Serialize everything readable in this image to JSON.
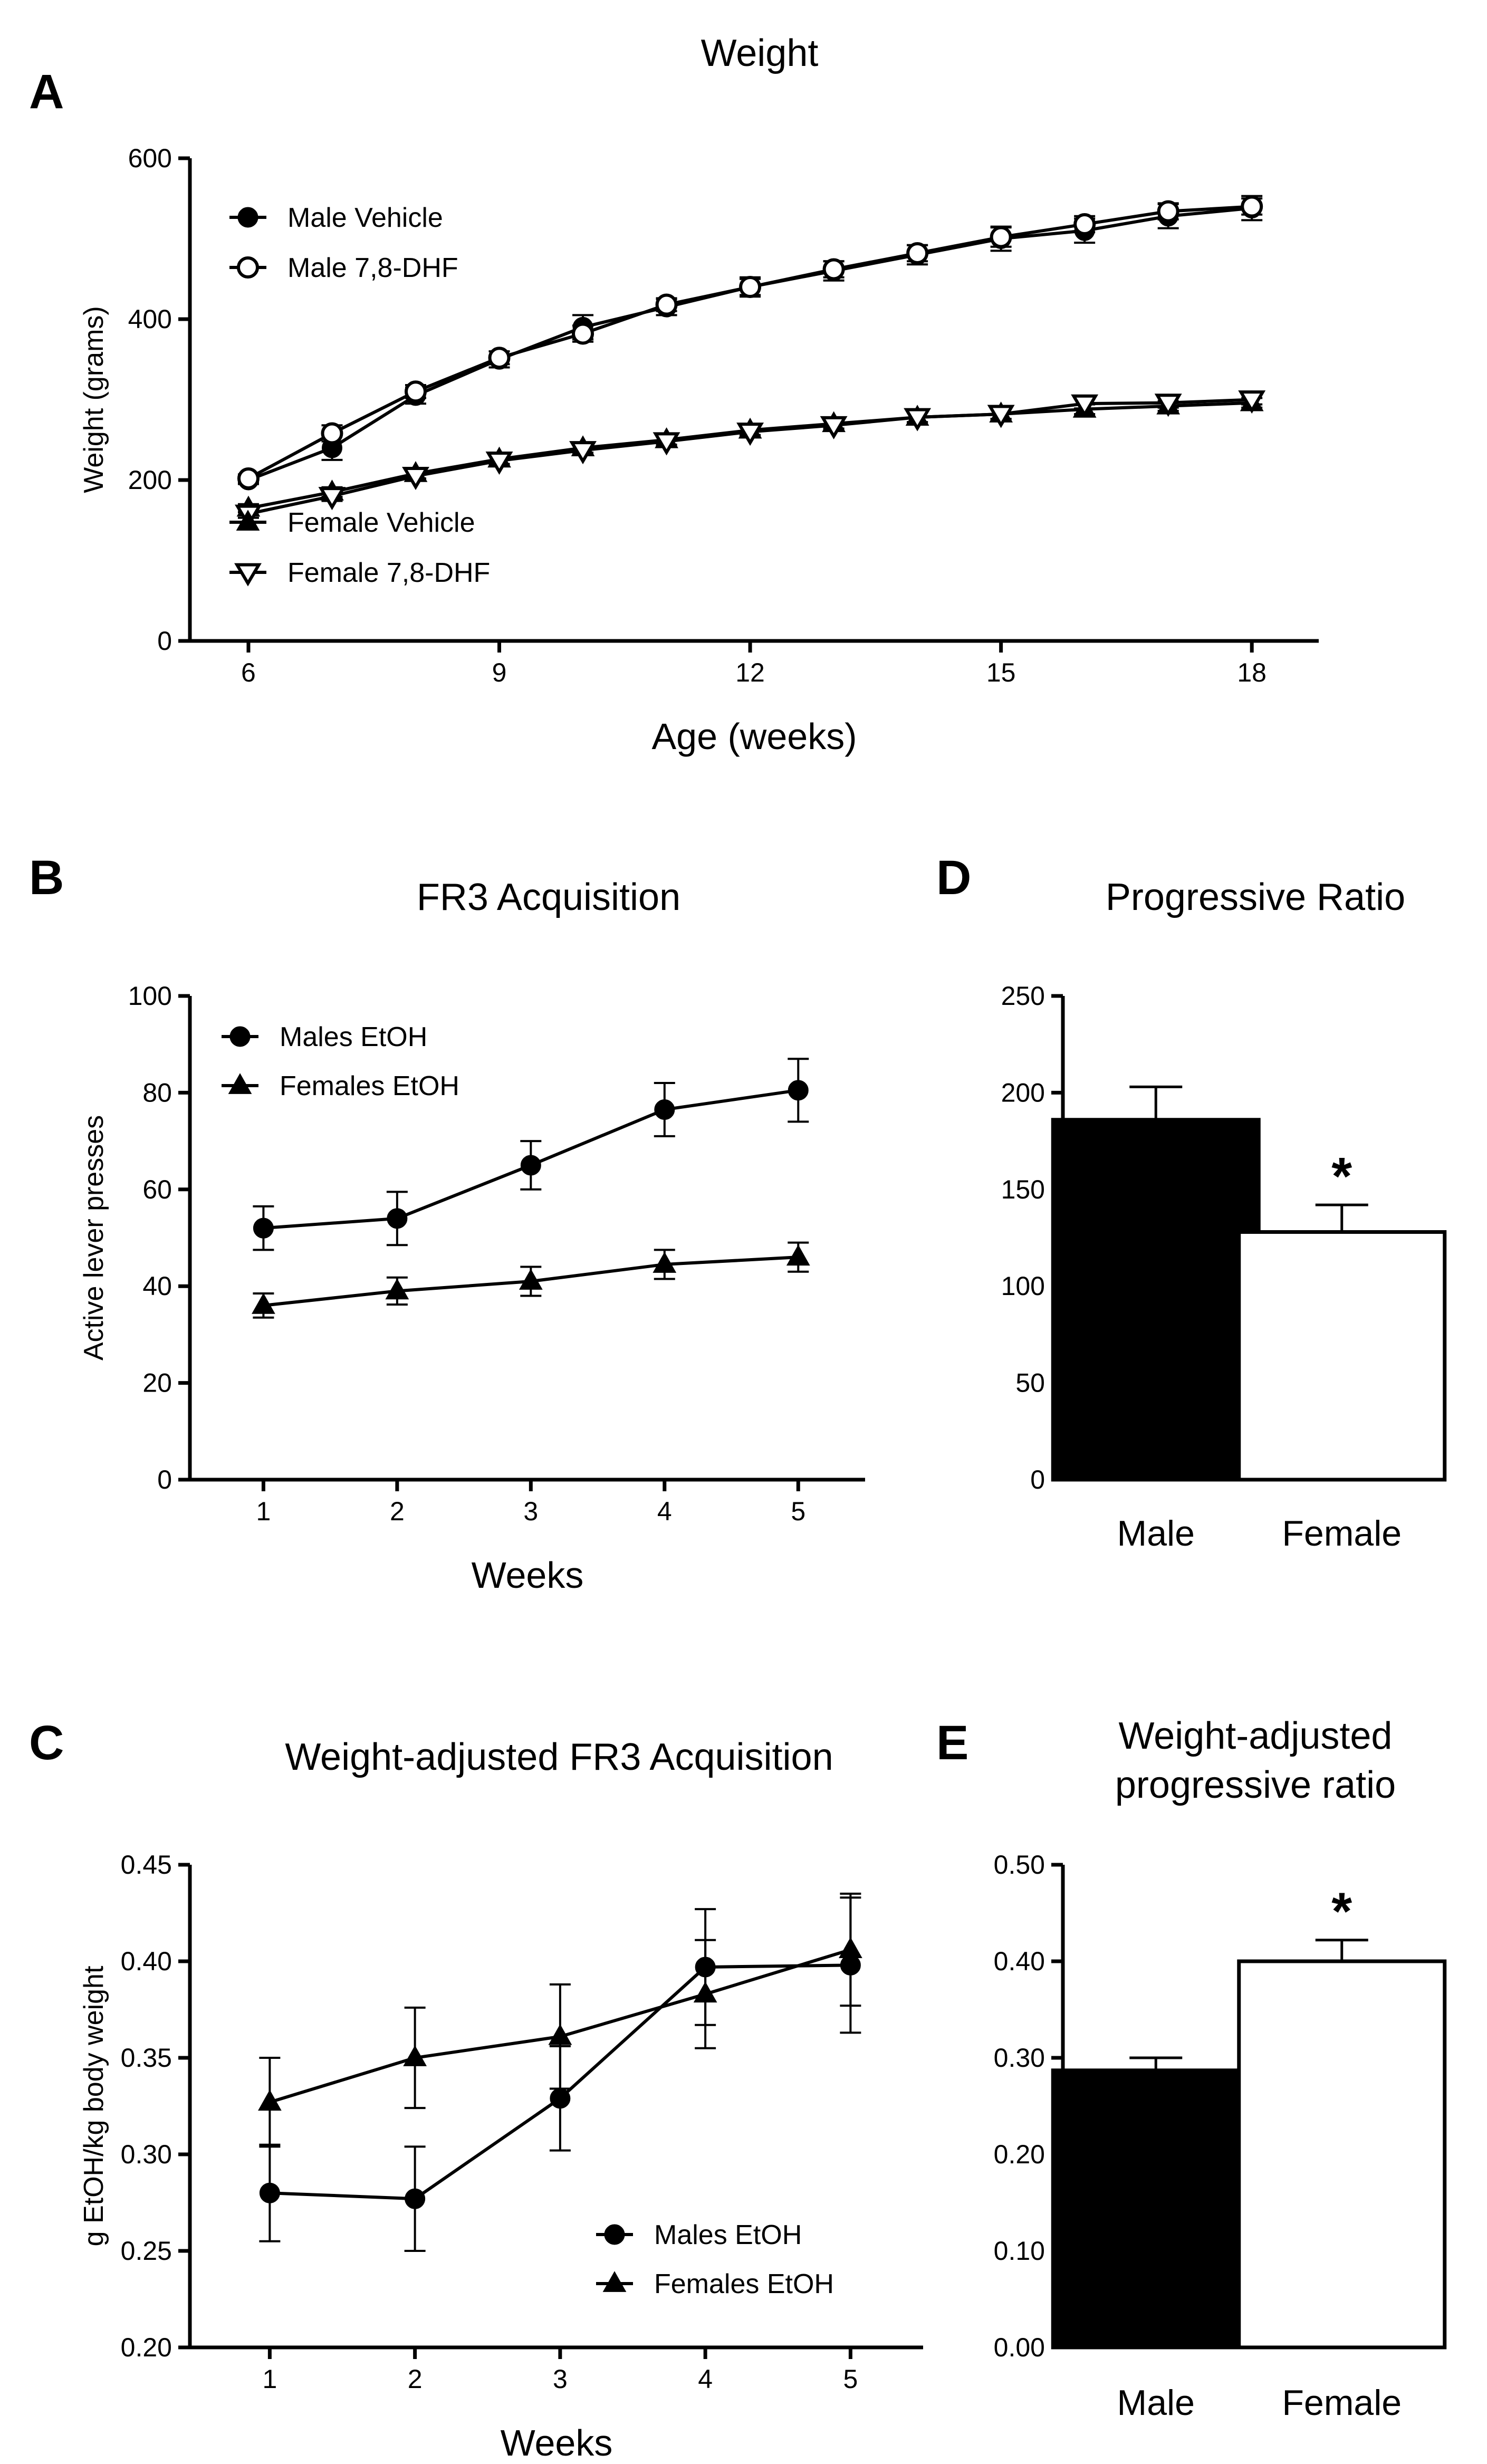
{
  "chart_data": [
    {
      "id": "A",
      "panel_label": "A",
      "type": "line",
      "title": "Weight",
      "xlabel": "Age (weeks)",
      "ylabel": "Weight (grams)",
      "xlim": [
        5.3,
        18.8
      ],
      "ylim": [
        0,
        600
      ],
      "xticks": [
        6,
        9,
        12,
        15,
        18
      ],
      "yticks": [
        0,
        200,
        400,
        600
      ],
      "x": [
        6,
        7,
        8,
        9,
        10,
        11,
        12,
        13,
        14,
        15,
        16,
        17,
        18
      ],
      "series": [
        {
          "name": "Male Vehicle",
          "marker": "circle-filled",
          "legend_group": 1,
          "values": [
            200,
            240,
            305,
            350,
            390,
            415,
            440,
            460,
            480,
            500,
            510,
            528,
            538
          ],
          "errors": [
            5,
            15,
            10,
            10,
            15,
            10,
            12,
            12,
            12,
            15,
            15,
            15,
            15
          ]
        },
        {
          "name": "Male 7,8-DHF",
          "marker": "circle-open",
          "legend_group": 1,
          "values": [
            202,
            258,
            310,
            352,
            382,
            418,
            440,
            462,
            482,
            502,
            518,
            534,
            540
          ],
          "errors": [
            5,
            10,
            8,
            8,
            10,
            8,
            10,
            10,
            10,
            12,
            10,
            10,
            10
          ]
        },
        {
          "name": "Female Vehicle",
          "marker": "triangle-filled",
          "legend_group": 2,
          "values": [
            165,
            185,
            208,
            226,
            240,
            250,
            262,
            270,
            278,
            282,
            288,
            292,
            296
          ],
          "errors": [
            5,
            6,
            6,
            6,
            6,
            6,
            6,
            6,
            6,
            6,
            6,
            6,
            6
          ]
        },
        {
          "name": "Female 7,8-DHF",
          "marker": "triangle-down-open",
          "legend_group": 2,
          "values": [
            158,
            180,
            205,
            224,
            237,
            248,
            260,
            268,
            278,
            282,
            295,
            296,
            300
          ],
          "errors": [
            5,
            6,
            6,
            6,
            6,
            6,
            6,
            6,
            6,
            6,
            6,
            6,
            6
          ]
        }
      ]
    },
    {
      "id": "B",
      "panel_label": "B",
      "type": "line",
      "title": "FR3 Acquisition",
      "xlabel": "Weeks",
      "ylabel": "Active lever presses",
      "xlim": [
        0.45,
        5.5
      ],
      "ylim": [
        0,
        100
      ],
      "xticks": [
        1,
        2,
        3,
        4,
        5
      ],
      "yticks": [
        0,
        20,
        40,
        60,
        80,
        100
      ],
      "x": [
        1,
        2,
        3,
        4,
        5
      ],
      "series": [
        {
          "name": "Males EtOH",
          "marker": "circle-filled",
          "legend_group": 1,
          "values": [
            52,
            54,
            65,
            76.5,
            80.5
          ],
          "errors": [
            4.5,
            5.5,
            5,
            5.5,
            6.5
          ]
        },
        {
          "name": "Females EtOH",
          "marker": "triangle-filled",
          "legend_group": 1,
          "values": [
            36,
            39,
            41,
            44.5,
            46
          ],
          "errors": [
            2.5,
            2.8,
            3,
            3,
            3
          ]
        }
      ]
    },
    {
      "id": "C",
      "panel_label": "C",
      "type": "line",
      "title": "Weight-adjusted FR3 Acquisition",
      "xlabel": "Weeks",
      "ylabel": "g EtOH/kg body weight",
      "xlim": [
        0.45,
        5.5
      ],
      "ylim": [
        0.2,
        0.45
      ],
      "xticks": [
        1,
        2,
        3,
        4,
        5
      ],
      "yticks": [
        0.2,
        0.25,
        0.3,
        0.35,
        0.4,
        0.45
      ],
      "ytick_labels": [
        "0.20",
        "0.25",
        "0.30",
        "0.35",
        "0.40",
        "0.45"
      ],
      "x": [
        1,
        2,
        3,
        4,
        5
      ],
      "series": [
        {
          "name": "Males EtOH",
          "marker": "circle-filled",
          "legend_group": 1,
          "values": [
            0.28,
            0.277,
            0.329,
            0.397,
            0.398
          ],
          "errors": [
            0.025,
            0.027,
            0.027,
            0.03,
            0.035
          ]
        },
        {
          "name": "Females EtOH",
          "marker": "triangle-filled",
          "legend_group": 1,
          "values": [
            0.327,
            0.35,
            0.361,
            0.383,
            0.406
          ],
          "errors": [
            0.023,
            0.026,
            0.027,
            0.028,
            0.029
          ]
        }
      ]
    },
    {
      "id": "D",
      "panel_label": "D",
      "type": "bar",
      "title": "Progressive Ratio",
      "xlabel": "",
      "ylabel": "",
      "categories": [
        "Male",
        "Female"
      ],
      "values": [
        186,
        128
      ],
      "errors": [
        17,
        14
      ],
      "bar_colors": [
        "#000000",
        "#ffffff"
      ],
      "significance": [
        "",
        "*"
      ],
      "ylim": [
        0,
        250
      ],
      "yticks": [
        0,
        50,
        100,
        150,
        200,
        250
      ]
    },
    {
      "id": "E",
      "panel_label": "E",
      "type": "bar",
      "title": "Weight-adjusted progressive ratio",
      "title_lines": [
        "Weight-adjusted",
        "progressive ratio"
      ],
      "xlabel": "",
      "ylabel": "",
      "categories": [
        "Male",
        "Female"
      ],
      "values": [
        0.287,
        0.4
      ],
      "errors": [
        0.013,
        0.022
      ],
      "bar_colors": [
        "#000000",
        "#ffffff"
      ],
      "significance": [
        "",
        "*"
      ],
      "ylim": [
        0,
        0.5
      ],
      "yticks": [
        0,
        0.1,
        0.2,
        0.3,
        0.4,
        0.5
      ],
      "ytick_labels": [
        "0.00",
        "0.10",
        "0.20",
        "0.30",
        "0.40",
        "0.50"
      ]
    }
  ]
}
